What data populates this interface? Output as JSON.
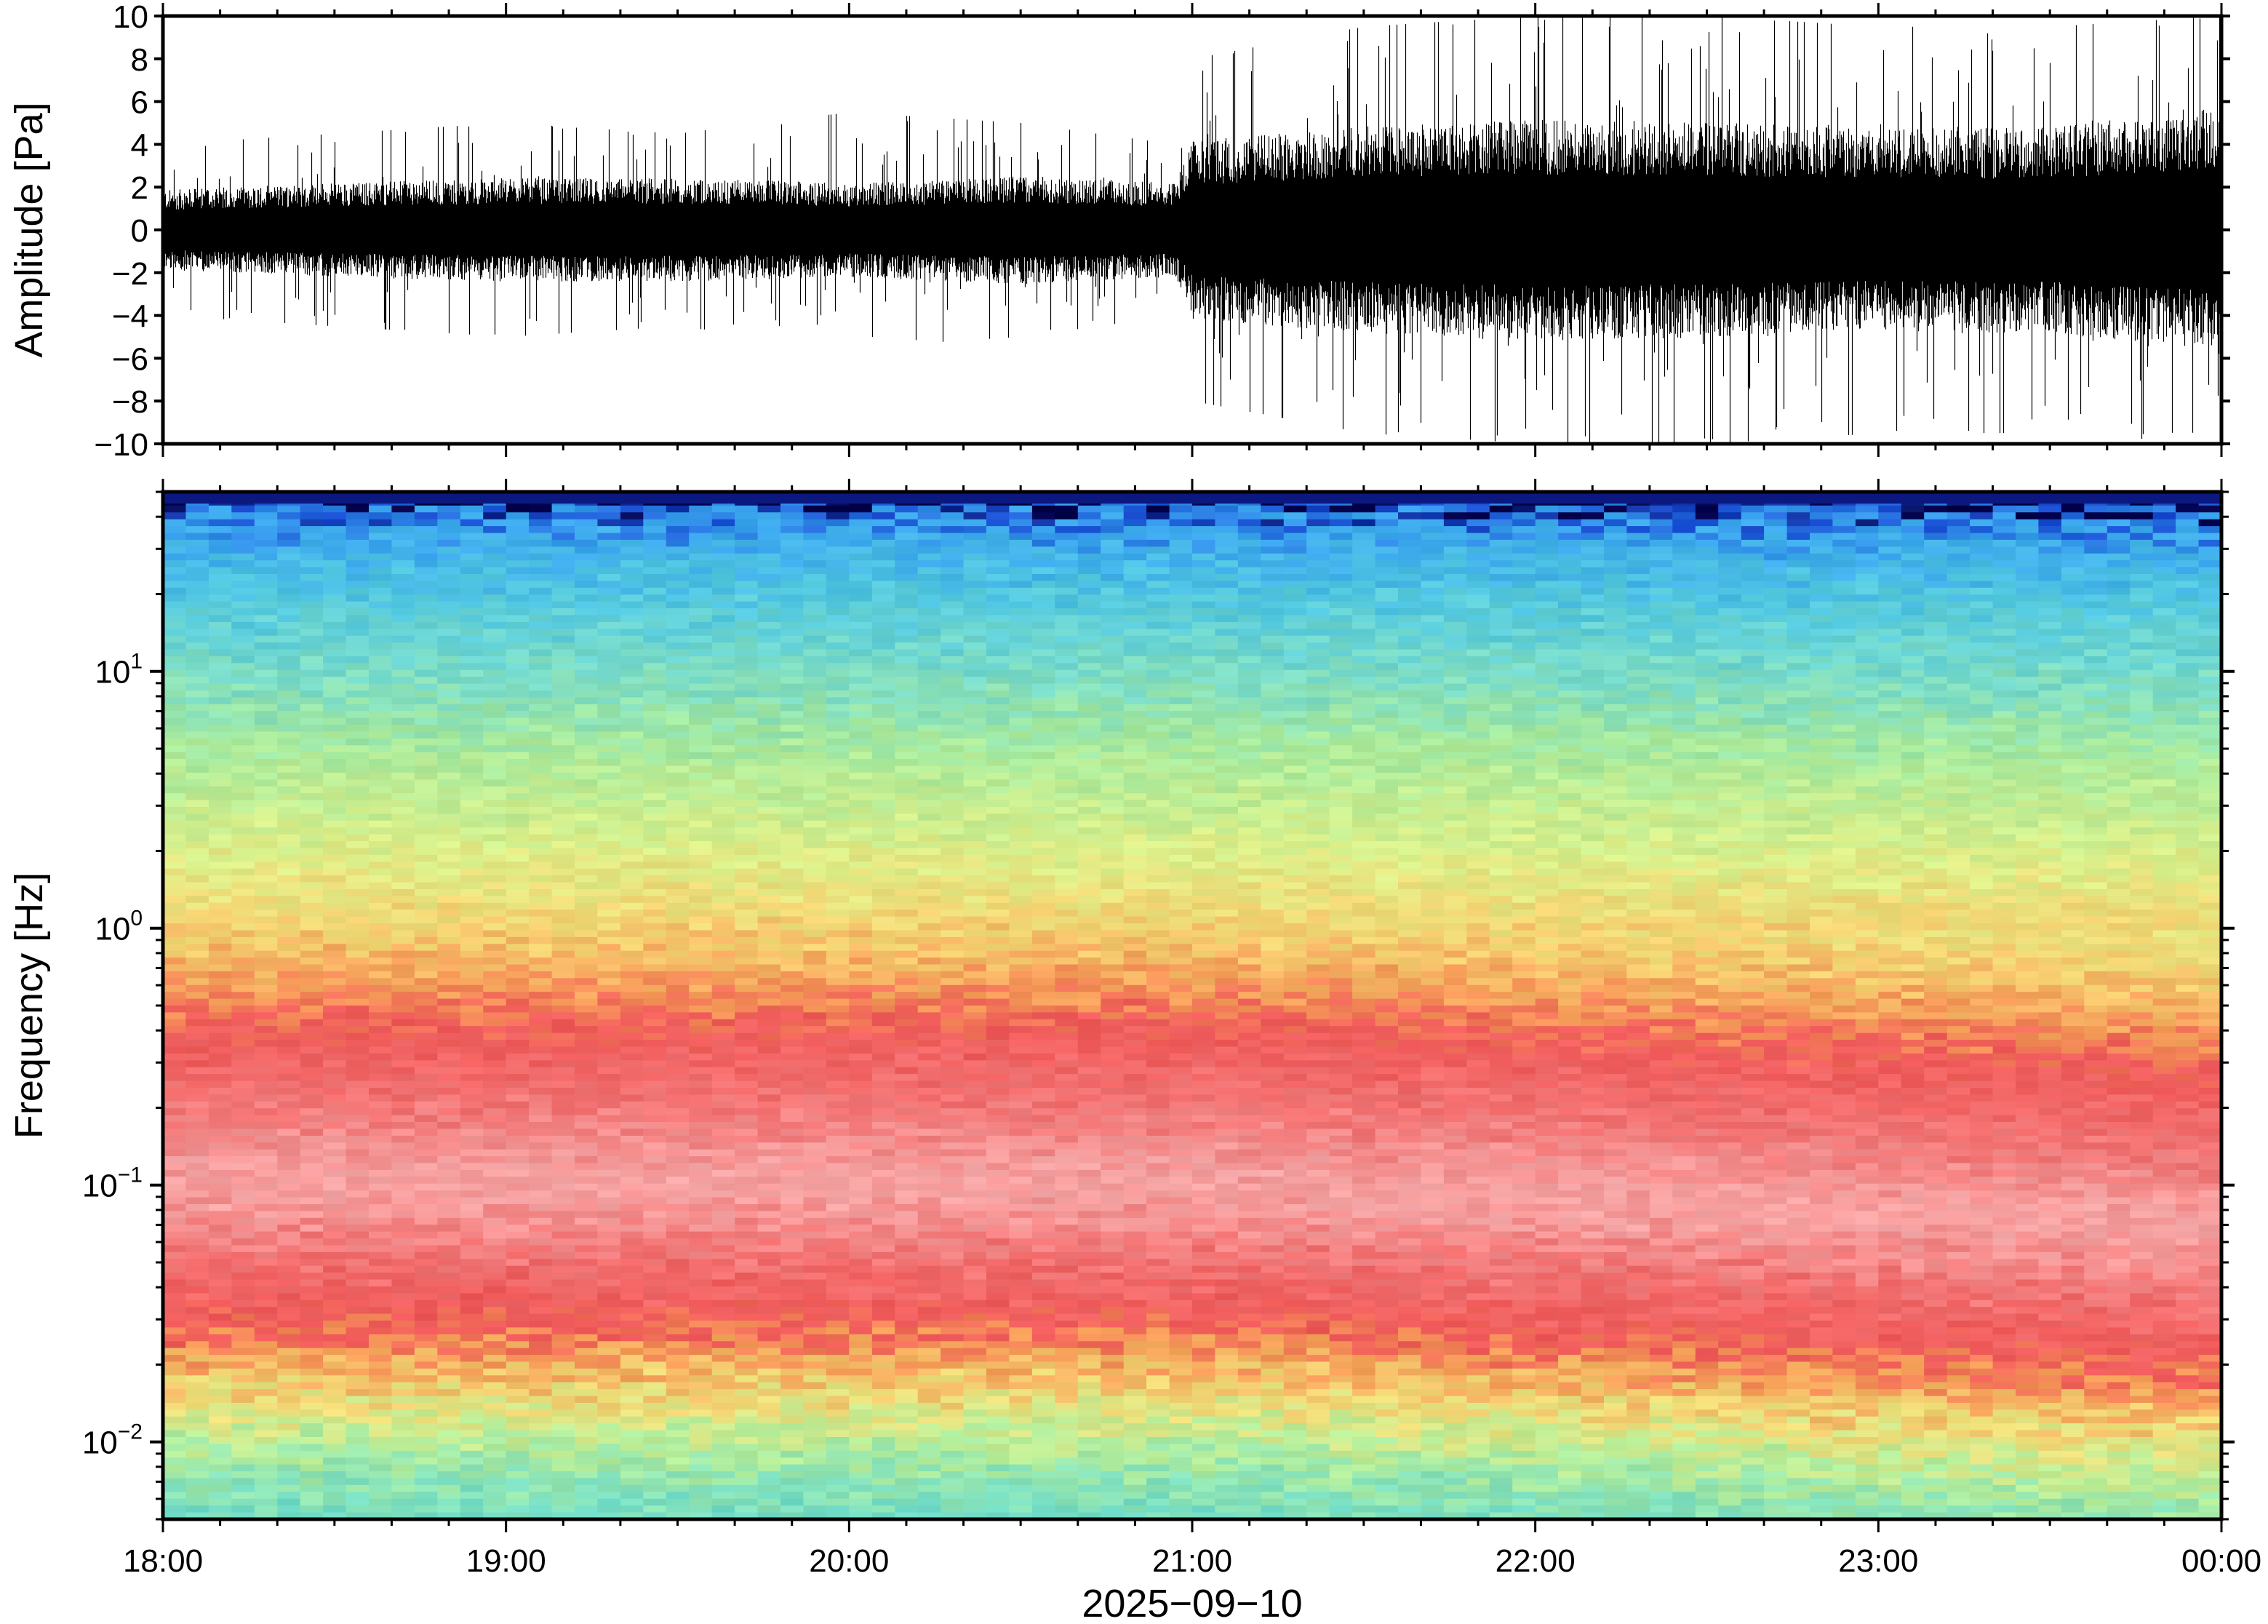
{
  "chart_data": [
    {
      "type": "line",
      "panel": "waveform",
      "ylabel": "Amplitude [Pa]",
      "ylim": [
        -10,
        10
      ],
      "yticks": [
        -10,
        -8,
        -6,
        -4,
        -2,
        0,
        2,
        4,
        6,
        8,
        10
      ],
      "ytick_labels": [
        "−10",
        "−8",
        "−6",
        "−4",
        "−2",
        "0",
        "2",
        "4",
        "6",
        "8",
        "10"
      ],
      "x_range": [
        "18:00",
        "00:00"
      ],
      "envelope": {
        "hours_from_start": [
          0,
          0.5,
          1.0,
          1.5,
          2.0,
          2.5,
          2.95,
          3.0,
          3.5,
          4.0,
          4.5,
          5.0,
          5.5,
          6.0
        ],
        "typical_amplitude_pa": [
          1.7,
          2.0,
          2.2,
          2.2,
          2.0,
          2.3,
          2.0,
          3.8,
          4.4,
          4.7,
          4.6,
          4.3,
          4.4,
          5.2
        ],
        "peak_amplitude_pa": [
          4.0,
          4.5,
          5.0,
          4.5,
          5.5,
          5.0,
          4.0,
          8.0,
          9.5,
          10.0,
          10.0,
          9.5,
          9.5,
          10.0
        ]
      },
      "color": "#000000"
    },
    {
      "type": "heatmap",
      "panel": "spectrogram",
      "ylabel": "Frequency [Hz]",
      "yscale": "log",
      "ylim_hz": [
        0.005,
        50
      ],
      "yticks_hz": [
        0.01,
        0.1,
        1,
        10
      ],
      "ytick_labels": [
        {
          "base": "10",
          "exp": "−2"
        },
        {
          "base": "10",
          "exp": "−1"
        },
        {
          "base": "10",
          "exp": "0"
        },
        {
          "base": "10",
          "exp": "1"
        }
      ],
      "colormap": [
        "#00005a",
        "#1e6ee6",
        "#3cb4f0",
        "#64dcd2",
        "#a0eba0",
        "#dcf08c",
        "#f5dc78",
        "#f5a05a",
        "#f05a5a",
        "#f8b4b4"
      ],
      "color_bands": [
        {
          "f_hz": 50,
          "color": "#00004a"
        },
        {
          "f_hz": 45,
          "color": "#1a4fd6"
        },
        {
          "f_hz": 35,
          "color": "#3aa6ee"
        },
        {
          "f_hz": 20,
          "color": "#52c8e0"
        },
        {
          "f_hz": 10,
          "color": "#7adcc8"
        },
        {
          "f_hz": 5,
          "color": "#a8ea9c"
        },
        {
          "f_hz": 2,
          "color": "#dcf08a"
        },
        {
          "f_hz": 1,
          "color": "#f4d472"
        },
        {
          "f_hz": 0.6,
          "color": "#f59a58"
        },
        {
          "f_hz": 0.4,
          "color": "#f05a5a"
        },
        {
          "f_hz": 0.2,
          "color": "#f27676"
        },
        {
          "f_hz": 0.1,
          "color": "#f6a8a8"
        },
        {
          "f_hz": 0.05,
          "color": "#f27070"
        },
        {
          "f_hz": 0.03,
          "color": "#ef5858"
        },
        {
          "f_hz": 0.022,
          "color": "#f5a058"
        },
        {
          "f_hz": 0.015,
          "color": "#f0e07a"
        },
        {
          "f_hz": 0.01,
          "color": "#b8ee98"
        },
        {
          "f_hz": 0.007,
          "color": "#8ee4b4"
        },
        {
          "f_hz": 0.005,
          "color": "#70dcc8"
        }
      ]
    }
  ],
  "x_axis": {
    "tick_labels": [
      "18:00",
      "19:00",
      "20:00",
      "21:00",
      "22:00",
      "23:00",
      "00:00"
    ],
    "label": "2025−09−10"
  }
}
